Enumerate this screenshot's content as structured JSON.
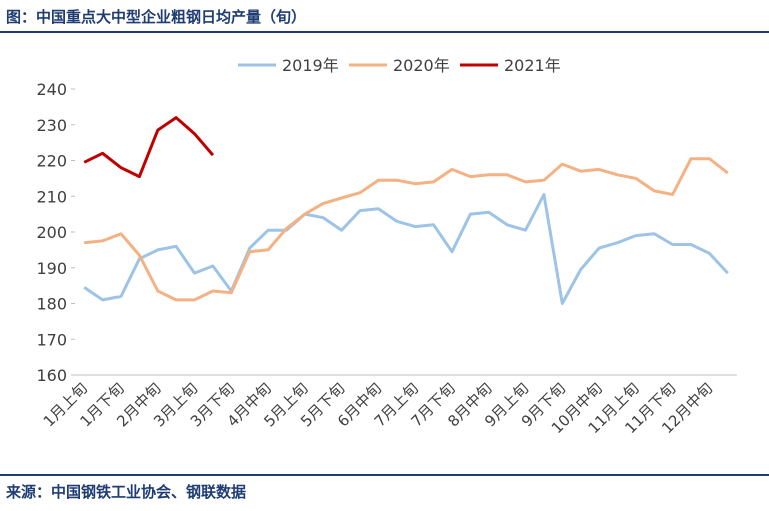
{
  "chart_data": {
    "type": "line",
    "title": "图：中国重点大中型企业粗钢日均产量（旬）",
    "source": "来源：中国钢铁工业协会、钢联数据",
    "categories": [
      "1月上旬",
      null,
      "1月下旬",
      null,
      "2月中旬",
      null,
      "3月上旬",
      null,
      "3月下旬",
      null,
      "4月中旬",
      null,
      "5月上旬",
      null,
      "5月下旬",
      null,
      "6月中旬",
      null,
      "7月上旬",
      null,
      "7月下旬",
      null,
      "8月中旬",
      null,
      "9月上旬",
      null,
      "9月下旬",
      null,
      "10月中旬",
      null,
      "11月上旬",
      null,
      "11月下旬",
      null,
      "12月中旬",
      null
    ],
    "series": [
      {
        "name": "2019年",
        "color": "#9dc3e6",
        "values": [
          184.5,
          181,
          182,
          192.5,
          195,
          196,
          188.5,
          190.5,
          183.5,
          195.5,
          200.5,
          200.5,
          205,
          204,
          200.5,
          206,
          206.5,
          203,
          201.5,
          202,
          194.5,
          205,
          205.5,
          202,
          200.5,
          210.5,
          180,
          189.5,
          195.5,
          197,
          199,
          199.5,
          196.5,
          196.5,
          194,
          188.5
        ]
      },
      {
        "name": "2020年",
        "color": "#f4b183",
        "values": [
          197,
          197.5,
          199.5,
          193.5,
          183.5,
          181,
          181,
          183.5,
          183,
          194.5,
          195,
          201,
          205,
          208,
          209.5,
          211,
          214.5,
          214.5,
          213.5,
          214,
          217.5,
          215.5,
          216,
          216,
          214,
          214.5,
          219,
          217,
          217.5,
          216,
          215,
          211.5,
          210.5,
          220.5,
          220.5,
          216.5
        ]
      },
      {
        "name": "2021年",
        "color": "#c00000",
        "values": [
          219.5,
          222,
          218,
          215.5,
          228.5,
          232,
          227.5,
          221.5,
          null,
          null,
          null,
          null,
          null,
          null,
          null,
          null,
          null,
          null,
          null,
          null,
          null,
          null,
          null,
          null,
          null,
          null,
          null,
          null,
          null,
          null,
          null,
          null,
          null,
          null,
          null,
          null
        ]
      }
    ],
    "ylim": [
      160,
      240
    ],
    "yticks": [
      160,
      170,
      180,
      190,
      200,
      210,
      220,
      230,
      240
    ]
  }
}
